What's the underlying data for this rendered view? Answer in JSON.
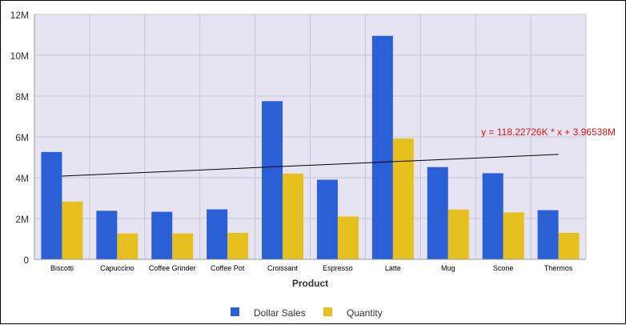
{
  "chart_data": {
    "type": "bar",
    "xlabel": "Product",
    "ylabel": "",
    "ylim": [
      0,
      12000000
    ],
    "y_ticks": [
      "0",
      "2M",
      "4M",
      "6M",
      "8M",
      "10M",
      "12M"
    ],
    "y_tick_values": [
      0,
      2000000,
      4000000,
      6000000,
      8000000,
      10000000,
      12000000
    ],
    "categories": [
      "Biscotti",
      "Capuccino",
      "Coffee Grinder",
      "Coffee Pot",
      "Croissant",
      "Espresso",
      "Latte",
      "Mug",
      "Scone",
      "Thermos"
    ],
    "series": [
      {
        "name": "Dollar Sales",
        "color": "#2a5fd6",
        "values": [
          5260000,
          2380000,
          2330000,
          2450000,
          7750000,
          3900000,
          10950000,
          4520000,
          4220000,
          2410000
        ]
      },
      {
        "name": "Quantity",
        "color": "#e6c01e",
        "values": [
          2830000,
          1270000,
          1270000,
          1300000,
          4200000,
          2100000,
          5920000,
          2440000,
          2300000,
          1300000
        ]
      }
    ],
    "trendline": {
      "label": "y = 118.22726K * x + 3.96538M",
      "label_color": "#e01010",
      "line_color": "#000000",
      "start_value": 4080000,
      "end_value": 5140000
    },
    "grid": true,
    "plot_background": "#e6e4f2",
    "grid_color": "#c8c6d6",
    "legend_position": "bottom"
  }
}
